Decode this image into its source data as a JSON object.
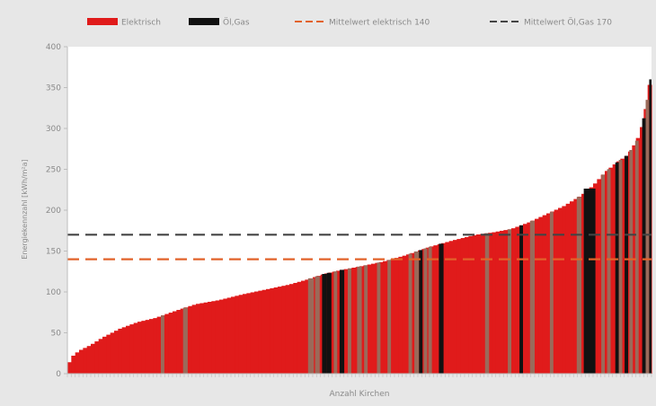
{
  "chart_data": {
    "type": "bar",
    "xlabel": "Anzahl Kirchen",
    "ylabel": "Energiekennzahl [kWh/m²a]",
    "ylim": [
      0,
      400
    ],
    "yticks": [
      0,
      50,
      100,
      150,
      200,
      250,
      300,
      350,
      400
    ],
    "grid": false,
    "legend_position": "top",
    "legend": [
      {
        "label": "Elektrisch",
        "kind": "bar",
        "color": "#e01b1b"
      },
      {
        "label": "Öl,Gas",
        "kind": "bar",
        "color": "#111111"
      },
      {
        "label": "Mittelwert elektrisch 140",
        "kind": "dashed-line",
        "color": "#e2622a"
      },
      {
        "label": "Mittelwert Öl,Gas 170",
        "kind": "dashed-line",
        "color": "#444444"
      }
    ],
    "reference_lines": [
      {
        "name": "Mittelwert elektrisch 140",
        "value": 140,
        "color": "#e2622a"
      },
      {
        "name": "Mittelwert Öl,Gas 170",
        "value": 170,
        "color": "#444444"
      }
    ],
    "profile": [
      [
        0,
        10
      ],
      [
        0.01,
        22
      ],
      [
        0.02,
        28
      ],
      [
        0.04,
        35
      ],
      [
        0.06,
        44
      ],
      [
        0.09,
        55
      ],
      [
        0.12,
        63
      ],
      [
        0.15,
        68
      ],
      [
        0.19,
        78
      ],
      [
        0.22,
        85
      ],
      [
        0.26,
        90
      ],
      [
        0.3,
        97
      ],
      [
        0.34,
        103
      ],
      [
        0.38,
        109
      ],
      [
        0.41,
        115
      ],
      [
        0.44,
        122
      ],
      [
        0.47,
        127
      ],
      [
        0.5,
        131
      ],
      [
        0.54,
        137
      ],
      [
        0.58,
        145
      ],
      [
        0.62,
        155
      ],
      [
        0.66,
        163
      ],
      [
        0.7,
        170
      ],
      [
        0.73,
        173
      ],
      [
        0.76,
        177
      ],
      [
        0.79,
        185
      ],
      [
        0.82,
        195
      ],
      [
        0.85,
        205
      ],
      [
        0.88,
        218
      ],
      [
        0.9,
        230
      ],
      [
        0.92,
        246
      ],
      [
        0.94,
        258
      ],
      [
        0.96,
        268
      ],
      [
        0.975,
        285
      ],
      [
        0.985,
        305
      ],
      [
        0.993,
        335
      ],
      [
        1.0,
        370
      ]
    ],
    "series_colors": {
      "elektrisch": "#e01b1b",
      "oelgas": "#111111",
      "mixed": "#9a6a5a"
    },
    "dark_bar_ranges": [
      [
        0.16,
        0.166,
        "mixed"
      ],
      [
        0.198,
        0.206,
        "mixed"
      ],
      [
        0.412,
        0.422,
        "mixed"
      ],
      [
        0.424,
        0.432,
        "mixed"
      ],
      [
        0.436,
        0.444,
        "oelgas"
      ],
      [
        0.444,
        0.452,
        "oelgas"
      ],
      [
        0.456,
        0.462,
        "mixed"
      ],
      [
        0.466,
        0.474,
        "oelgas"
      ],
      [
        0.48,
        0.486,
        "mixed"
      ],
      [
        0.496,
        0.504,
        "mixed"
      ],
      [
        0.508,
        0.514,
        "mixed"
      ],
      [
        0.53,
        0.536,
        "mixed"
      ],
      [
        0.548,
        0.554,
        "mixed"
      ],
      [
        0.584,
        0.59,
        "mixed"
      ],
      [
        0.594,
        0.602,
        "mixed"
      ],
      [
        0.602,
        0.608,
        "oelgas"
      ],
      [
        0.61,
        0.616,
        "mixed"
      ],
      [
        0.618,
        0.624,
        "mixed"
      ],
      [
        0.636,
        0.644,
        "oelgas"
      ],
      [
        0.715,
        0.722,
        "mixed"
      ],
      [
        0.754,
        0.76,
        "mixed"
      ],
      [
        0.774,
        0.78,
        "oelgas"
      ],
      [
        0.792,
        0.8,
        "mixed"
      ],
      [
        0.826,
        0.832,
        "mixed"
      ],
      [
        0.872,
        0.88,
        "mixed"
      ],
      [
        0.884,
        0.904,
        "oelgas"
      ],
      [
        0.914,
        0.92,
        "mixed"
      ],
      [
        0.924,
        0.93,
        "mixed"
      ],
      [
        0.938,
        0.944,
        "oelgas"
      ],
      [
        0.944,
        0.95,
        "mixed"
      ],
      [
        0.954,
        0.96,
        "oelgas"
      ],
      [
        0.962,
        0.968,
        "mixed"
      ],
      [
        0.972,
        0.978,
        "mixed"
      ],
      [
        0.984,
        0.99,
        "oelgas"
      ],
      [
        0.99,
        0.996,
        "mixed"
      ],
      [
        0.996,
        1.0,
        "oelgas"
      ]
    ],
    "x_ticks": 150
  }
}
